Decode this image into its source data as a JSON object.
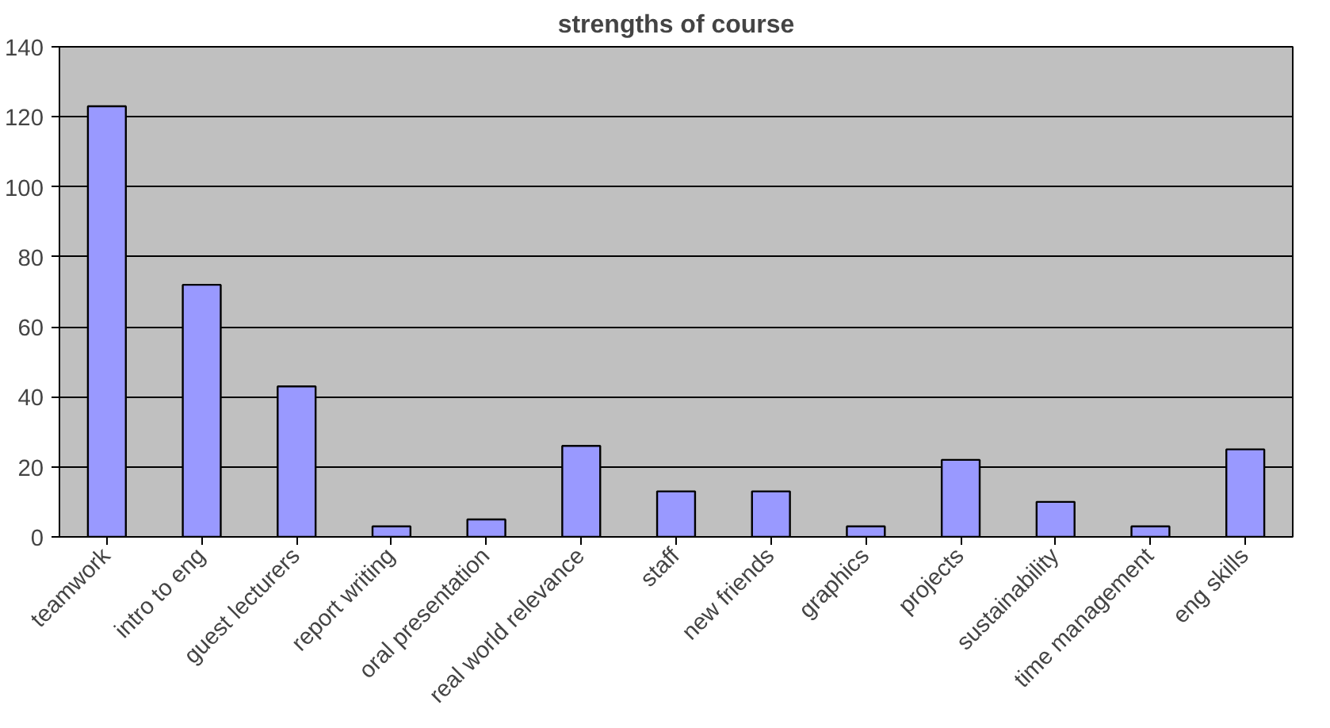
{
  "chart_data": {
    "type": "bar",
    "title": "strengths of course",
    "categories": [
      "teamwork",
      "intro to eng",
      "guest lecturers",
      "report writing",
      "oral presentation",
      "real world relevance",
      "staff",
      "new friends",
      "graphics",
      "projects",
      "sustainability",
      "time management",
      "eng skills"
    ],
    "values": [
      123,
      72,
      43,
      3,
      5,
      26,
      13,
      13,
      3,
      22,
      10,
      3,
      25
    ],
    "color": "#9999ff",
    "ylim": [
      0,
      140
    ],
    "yticks": [
      0,
      20,
      40,
      60,
      80,
      100,
      120,
      140
    ],
    "grid": "y"
  }
}
